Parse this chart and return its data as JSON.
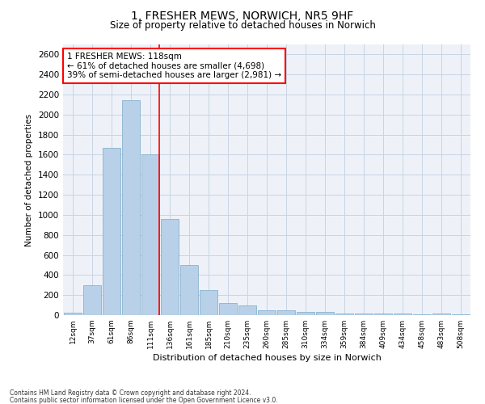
{
  "title_line1": "1, FRESHER MEWS, NORWICH, NR5 9HF",
  "title_line2": "Size of property relative to detached houses in Norwich",
  "xlabel": "Distribution of detached houses by size in Norwich",
  "ylabel": "Number of detached properties",
  "bar_color": "#b8d0e8",
  "bar_edge_color": "#7aaac8",
  "grid_color": "#c8d4e4",
  "background_color": "#eef2f8",
  "categories": [
    "12sqm",
    "37sqm",
    "61sqm",
    "86sqm",
    "111sqm",
    "136sqm",
    "161sqm",
    "185sqm",
    "210sqm",
    "235sqm",
    "260sqm",
    "285sqm",
    "310sqm",
    "334sqm",
    "359sqm",
    "384sqm",
    "409sqm",
    "434sqm",
    "458sqm",
    "483sqm",
    "508sqm"
  ],
  "values": [
    25,
    300,
    1670,
    2140,
    1600,
    960,
    500,
    250,
    120,
    100,
    50,
    50,
    35,
    35,
    20,
    20,
    20,
    20,
    5,
    20,
    5
  ],
  "ylim": [
    0,
    2700
  ],
  "yticks": [
    0,
    200,
    400,
    600,
    800,
    1000,
    1200,
    1400,
    1600,
    1800,
    2000,
    2200,
    2400,
    2600
  ],
  "vline_bar_index": 4,
  "annotation_text": "1 FRESHER MEWS: 118sqm\n← 61% of detached houses are smaller (4,698)\n39% of semi-detached houses are larger (2,981) →",
  "annotation_box_color": "white",
  "annotation_box_edge": "red",
  "footnote_line1": "Contains HM Land Registry data © Crown copyright and database right 2024.",
  "footnote_line2": "Contains public sector information licensed under the Open Government Licence v3.0."
}
